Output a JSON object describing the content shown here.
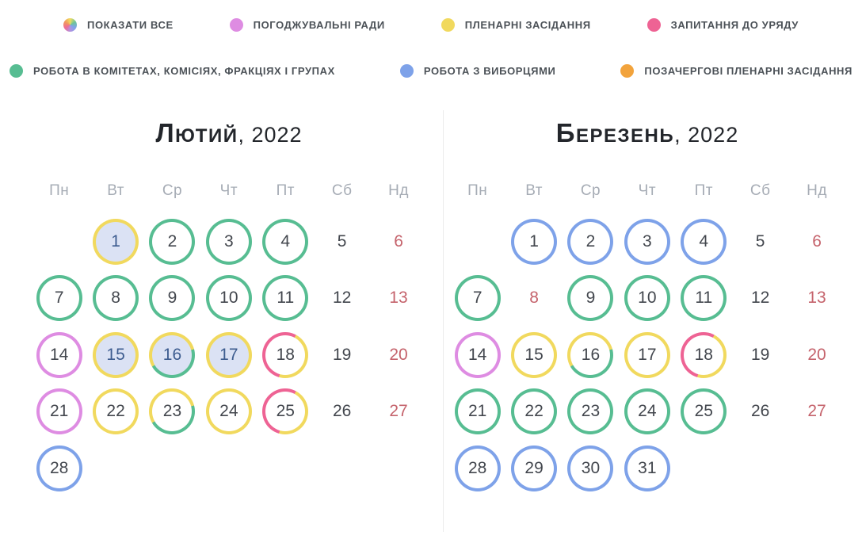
{
  "colors": {
    "green": "#57bd92",
    "yellow": "#f1d95e",
    "blue": "#7ea2e9",
    "magenta": "#de8ce2",
    "pink": "#ee6394",
    "orange": "#f2a33c",
    "holiday_red": "#c5636c",
    "day_text": "#43474e",
    "highlight_fill": "#dbe2f4",
    "highlight_text": "#3d5c8f",
    "weekday_text": "#a6acb5",
    "legend_text": "#4b5157",
    "title_text": "#23262b"
  },
  "legend": {
    "rows": [
      [
        {
          "label": "ПОКАЗАТИ ВСЕ",
          "dot": "multi"
        },
        {
          "label": "ПОГОДЖУВАЛЬНІ РАДИ",
          "dot": "magenta"
        },
        {
          "label": "ПЛЕНАРНІ ЗАСІДАННЯ",
          "dot": "yellow"
        },
        {
          "label": "ЗАПИТАННЯ ДО УРЯДУ",
          "dot": "pink"
        }
      ],
      [
        {
          "label": "РОБОТА В КОМІТЕТАХ, КОМІСІЯХ, ФРАКЦІЯХ І ГРУПАХ",
          "dot": "green"
        },
        {
          "label": "РОБОТА З ВИБОРЦЯМИ",
          "dot": "blue"
        },
        {
          "label": "ПОЗАЧЕРГОВІ ПЛЕНАРНІ ЗАСІДАННЯ",
          "dot": "orange"
        }
      ]
    ]
  },
  "calendars": [
    {
      "month": "Лютий",
      "year_suffix": ", 2022",
      "weekdays": [
        "Пн",
        "Вт",
        "Ср",
        "Чт",
        "Пт",
        "Сб",
        "Нд"
      ],
      "weeks": [
        [
          {},
          {
            "day": "1",
            "ring": "yellow",
            "fill": true
          },
          {
            "day": "2",
            "ring": "green"
          },
          {
            "day": "3",
            "ring": "green"
          },
          {
            "day": "4",
            "ring": "green"
          },
          {
            "day": "5",
            "style": "plain"
          },
          {
            "day": "6",
            "style": "holiday"
          }
        ],
        [
          {
            "day": "7",
            "ring": "green"
          },
          {
            "day": "8",
            "ring": "green"
          },
          {
            "day": "9",
            "ring": "green"
          },
          {
            "day": "10",
            "ring": "green"
          },
          {
            "day": "11",
            "ring": "green"
          },
          {
            "day": "12",
            "style": "plain"
          },
          {
            "day": "13",
            "style": "holiday"
          }
        ],
        [
          {
            "day": "14",
            "ring": "magenta"
          },
          {
            "day": "15",
            "ring": "yellow",
            "fill": true
          },
          {
            "day": "16",
            "ring": "yellow-green",
            "fill": true
          },
          {
            "day": "17",
            "ring": "yellow",
            "fill": true
          },
          {
            "day": "18",
            "ring": "pink-yellow"
          },
          {
            "day": "19",
            "style": "plain"
          },
          {
            "day": "20",
            "style": "holiday"
          }
        ],
        [
          {
            "day": "21",
            "ring": "magenta"
          },
          {
            "day": "22",
            "ring": "yellow"
          },
          {
            "day": "23",
            "ring": "yellow-green"
          },
          {
            "day": "24",
            "ring": "yellow"
          },
          {
            "day": "25",
            "ring": "pink-yellow"
          },
          {
            "day": "26",
            "style": "plain"
          },
          {
            "day": "27",
            "style": "holiday"
          }
        ],
        [
          {
            "day": "28",
            "ring": "blue"
          },
          {},
          {},
          {},
          {},
          {},
          {}
        ]
      ]
    },
    {
      "month": "Березень",
      "year_suffix": ", 2022",
      "weekdays": [
        "Пн",
        "Вт",
        "Ср",
        "Чт",
        "Пт",
        "Сб",
        "Нд"
      ],
      "weeks": [
        [
          {},
          {
            "day": "1",
            "ring": "blue"
          },
          {
            "day": "2",
            "ring": "blue"
          },
          {
            "day": "3",
            "ring": "blue"
          },
          {
            "day": "4",
            "ring": "blue"
          },
          {
            "day": "5",
            "style": "plain"
          },
          {
            "day": "6",
            "style": "holiday"
          }
        ],
        [
          {
            "day": "7",
            "ring": "green"
          },
          {
            "day": "8",
            "style": "holiday"
          },
          {
            "day": "9",
            "ring": "green"
          },
          {
            "day": "10",
            "ring": "green"
          },
          {
            "day": "11",
            "ring": "green"
          },
          {
            "day": "12",
            "style": "plain"
          },
          {
            "day": "13",
            "style": "holiday"
          }
        ],
        [
          {
            "day": "14",
            "ring": "magenta"
          },
          {
            "day": "15",
            "ring": "yellow"
          },
          {
            "day": "16",
            "ring": "yellow-green"
          },
          {
            "day": "17",
            "ring": "yellow"
          },
          {
            "day": "18",
            "ring": "pink-yellow"
          },
          {
            "day": "19",
            "style": "plain"
          },
          {
            "day": "20",
            "style": "holiday"
          }
        ],
        [
          {
            "day": "21",
            "ring": "green"
          },
          {
            "day": "22",
            "ring": "green"
          },
          {
            "day": "23",
            "ring": "green"
          },
          {
            "day": "24",
            "ring": "green"
          },
          {
            "day": "25",
            "ring": "green"
          },
          {
            "day": "26",
            "style": "plain"
          },
          {
            "day": "27",
            "style": "holiday"
          }
        ],
        [
          {
            "day": "28",
            "ring": "blue"
          },
          {
            "day": "29",
            "ring": "blue"
          },
          {
            "day": "30",
            "ring": "blue"
          },
          {
            "day": "31",
            "ring": "blue"
          },
          {},
          {},
          {}
        ]
      ]
    }
  ]
}
